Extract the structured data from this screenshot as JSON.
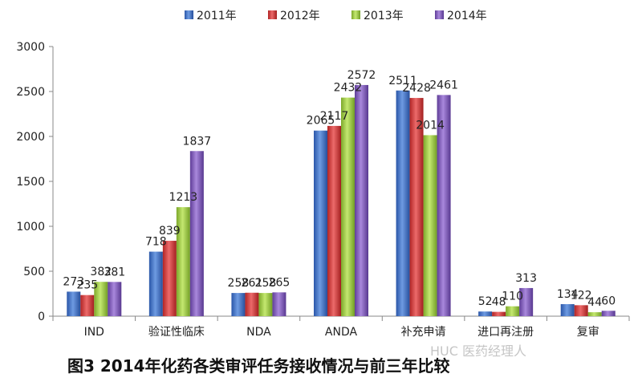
{
  "chart_data": {
    "type": "bar",
    "categories": [
      "IND",
      "验证性临床",
      "NDA",
      "ANDA",
      "补充申请",
      "进口再注册",
      "复审"
    ],
    "series": [
      {
        "name": "2011年",
        "color": "#3a6fc4",
        "values": [
          273,
          718,
          258,
          2065,
          2511,
          52,
          134
        ]
      },
      {
        "name": "2012年",
        "color": "#d23a3a",
        "values": [
          235,
          839,
          261,
          2117,
          2428,
          48,
          122
        ]
      },
      {
        "name": "2013年",
        "color": "#9ccb3b",
        "values": [
          382,
          1213,
          258,
          2432,
          2014,
          110,
          44
        ]
      },
      {
        "name": "2014年",
        "color": "#7b55b5",
        "values": [
          381,
          1837,
          265,
          2572,
          2461,
          313,
          60
        ]
      }
    ],
    "yticks": [
      0,
      500,
      1000,
      1500,
      2000,
      2500,
      3000
    ],
    "ylim": [
      0,
      3000
    ],
    "legend": "top"
  },
  "caption": "图3  2014年化药各类审评任务接收情况与前三年比较",
  "watermark": "HUC 医药经理人"
}
